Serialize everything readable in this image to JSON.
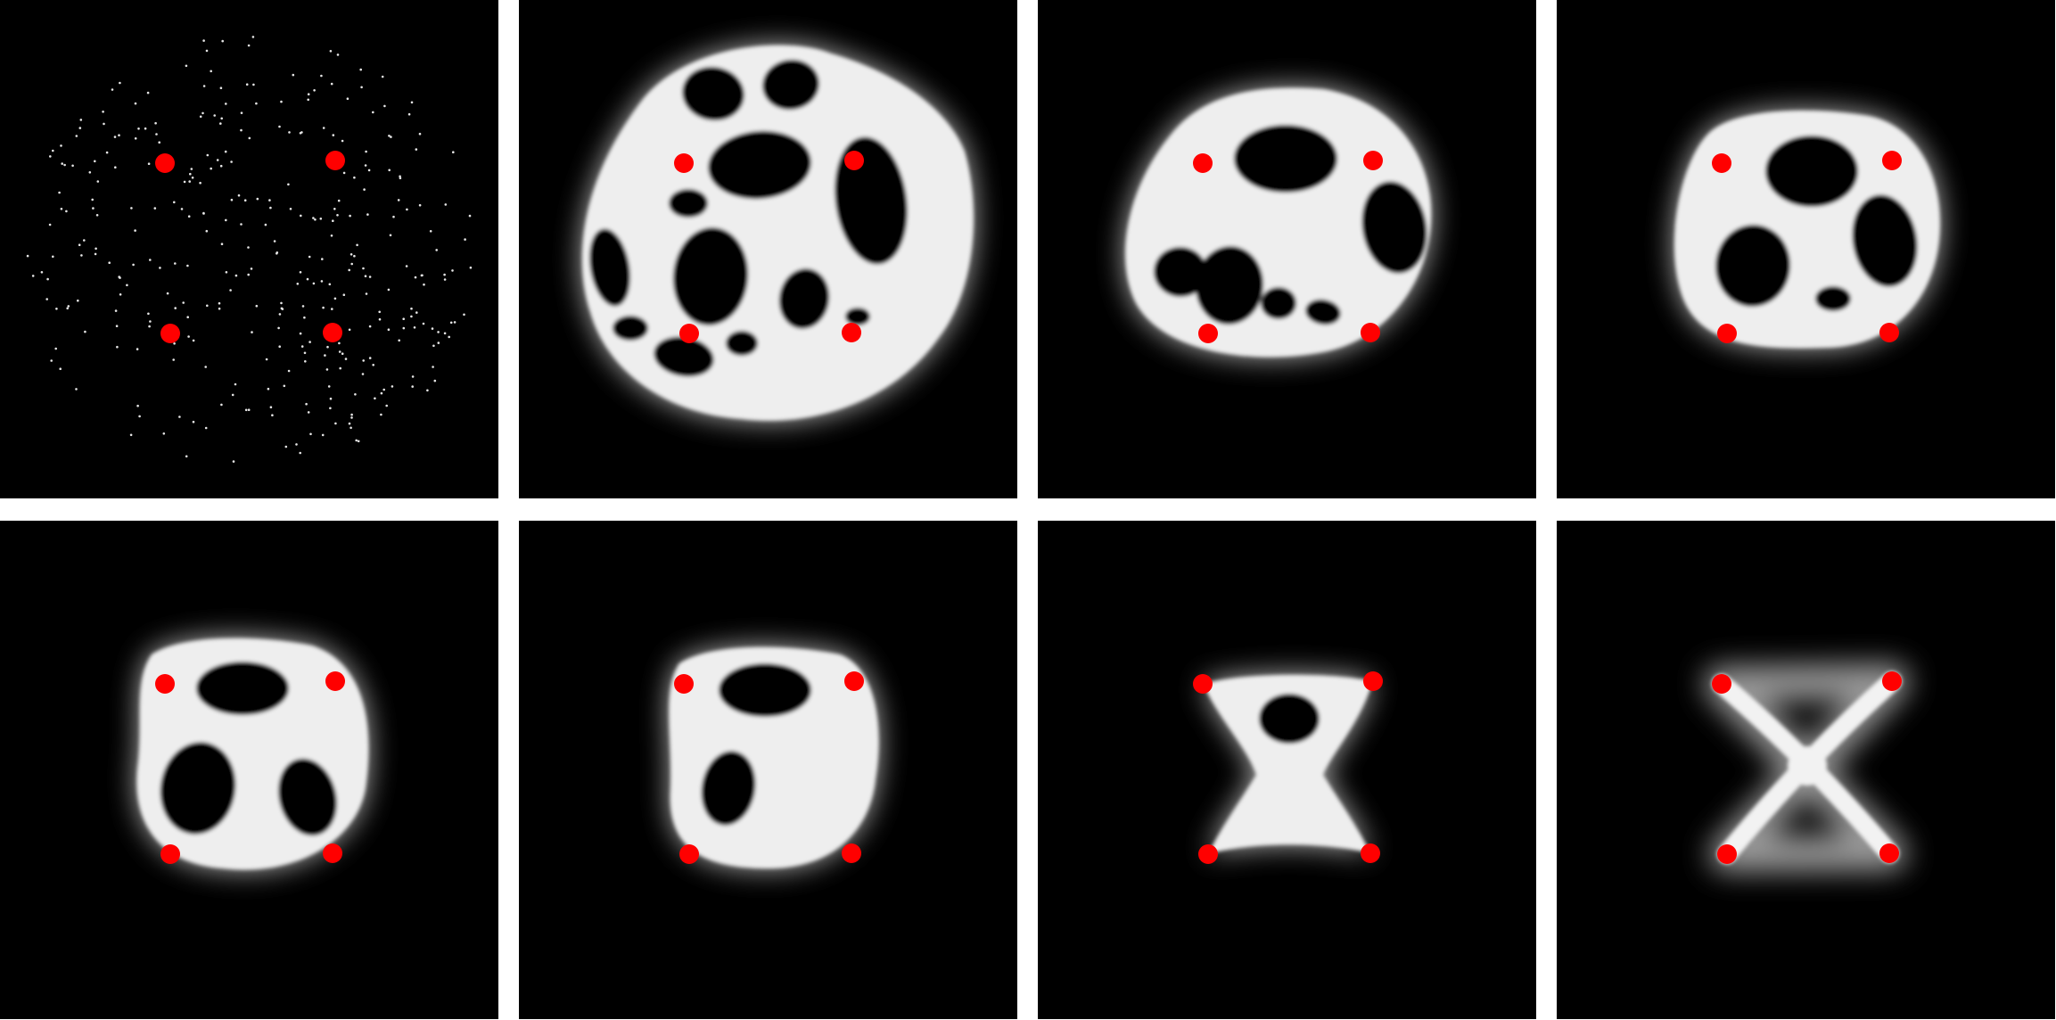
{
  "figure": {
    "description_free": true,
    "colors": {
      "background": "#000000",
      "separator": "#ffffff",
      "network": "#ffffff",
      "terminal_points": "#ff0000"
    },
    "rows": 2,
    "columns": 4,
    "panel_count": 8
  }
}
